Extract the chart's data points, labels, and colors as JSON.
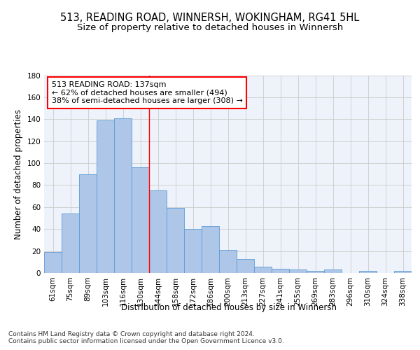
{
  "title_line1": "513, READING ROAD, WINNERSH, WOKINGHAM, RG41 5HL",
  "title_line2": "Size of property relative to detached houses in Winnersh",
  "xlabel": "Distribution of detached houses by size in Winnersh",
  "ylabel": "Number of detached properties",
  "bar_labels": [
    "61sqm",
    "75sqm",
    "89sqm",
    "103sqm",
    "116sqm",
    "130sqm",
    "144sqm",
    "158sqm",
    "172sqm",
    "186sqm",
    "200sqm",
    "213sqm",
    "227sqm",
    "241sqm",
    "255sqm",
    "269sqm",
    "283sqm",
    "296sqm",
    "310sqm",
    "324sqm",
    "338sqm"
  ],
  "bar_values": [
    19,
    54,
    90,
    139,
    141,
    96,
    75,
    59,
    40,
    43,
    21,
    13,
    6,
    4,
    3,
    2,
    3,
    0,
    2,
    0,
    2
  ],
  "bar_color": "#aec6e8",
  "bar_edge_color": "#5b9bd5",
  "vline_color": "red",
  "annotation_text": "513 READING ROAD: 137sqm\n← 62% of detached houses are smaller (494)\n38% of semi-detached houses are larger (308) →",
  "annotation_box_color": "white",
  "annotation_box_edge_color": "red",
  "ylim": [
    0,
    180
  ],
  "yticks": [
    0,
    20,
    40,
    60,
    80,
    100,
    120,
    140,
    160,
    180
  ],
  "grid_color": "#cccccc",
  "bg_color": "#eef2fa",
  "footer": "Contains HM Land Registry data © Crown copyright and database right 2024.\nContains public sector information licensed under the Open Government Licence v3.0.",
  "title_fontsize": 10.5,
  "subtitle_fontsize": 9.5,
  "axis_label_fontsize": 8.5,
  "tick_fontsize": 7.5,
  "footer_fontsize": 6.5,
  "annotation_fontsize": 8
}
